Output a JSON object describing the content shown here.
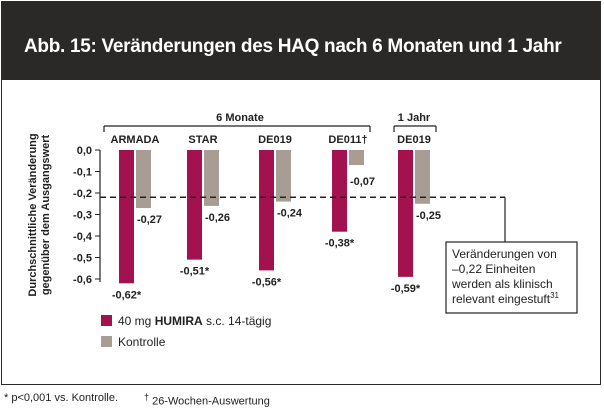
{
  "header": {
    "title": "Abb. 15:  Veränderungen des HAQ nach 6 Monaten und 1 Jahr"
  },
  "group_labels": {
    "six_months": "6 Monate",
    "one_year": "1 Jahr"
  },
  "ylabel_lines": [
    "Durchschnittliche Veränderung",
    "gegenüber dem Ausgangswert"
  ],
  "note": {
    "lines": [
      "Veränderungen von",
      "–0,22 Einheiten",
      "werden als klinisch",
      "relevant eingestuft"
    ],
    "superscript": "31"
  },
  "footnotes": {
    "f1": "* p<0,001 vs. Kontrolle.",
    "f2_mark": "†",
    "f2": " 26-Wochen-Auswertung"
  },
  "colors": {
    "humira": "#a3124f",
    "control": "#a79d94",
    "header_bg": "#2b2828"
  },
  "chart_data": {
    "type": "bar",
    "title": "Veränderungen des HAQ nach 6 Monaten und 1 Jahr",
    "ylabel": "Durchschnittliche Veränderung gegenüber dem Ausgangswert",
    "categories": [
      "ARMADA",
      "STAR",
      "DE019",
      "DE011†",
      "DE019"
    ],
    "series": [
      {
        "name": "40 mg HUMIRA s.c. 14-tägig",
        "legend_prefix": "40 mg ",
        "legend_bold": "HUMIRA",
        "legend_suffix": " s.c. 14-tägig",
        "values": [
          -0.62,
          -0.51,
          -0.56,
          -0.38,
          -0.59
        ],
        "labels": [
          "-0,62*",
          "-0,51*",
          "-0,56*",
          "-0,38*",
          "-0,59*"
        ]
      },
      {
        "name": "Kontrolle",
        "legend_prefix": "Kontrolle",
        "legend_bold": "",
        "legend_suffix": "",
        "values": [
          -0.27,
          -0.26,
          -0.24,
          -0.07,
          -0.25
        ],
        "labels": [
          "-0,27",
          "-0,26",
          "-0,24",
          "-0,07",
          "-0,25"
        ]
      }
    ],
    "reference_line": -0.22,
    "ylim": [
      -0.6,
      0.0
    ],
    "yticks": [
      0.0,
      -0.1,
      -0.2,
      -0.3,
      -0.4,
      -0.5,
      -0.6
    ],
    "ytick_labels": [
      "0,0",
      "-0,1",
      "-0,2",
      "-0,3",
      "-0,4",
      "-0,5",
      "-0,6"
    ],
    "legend_position": "bottom-left",
    "grid": false
  }
}
